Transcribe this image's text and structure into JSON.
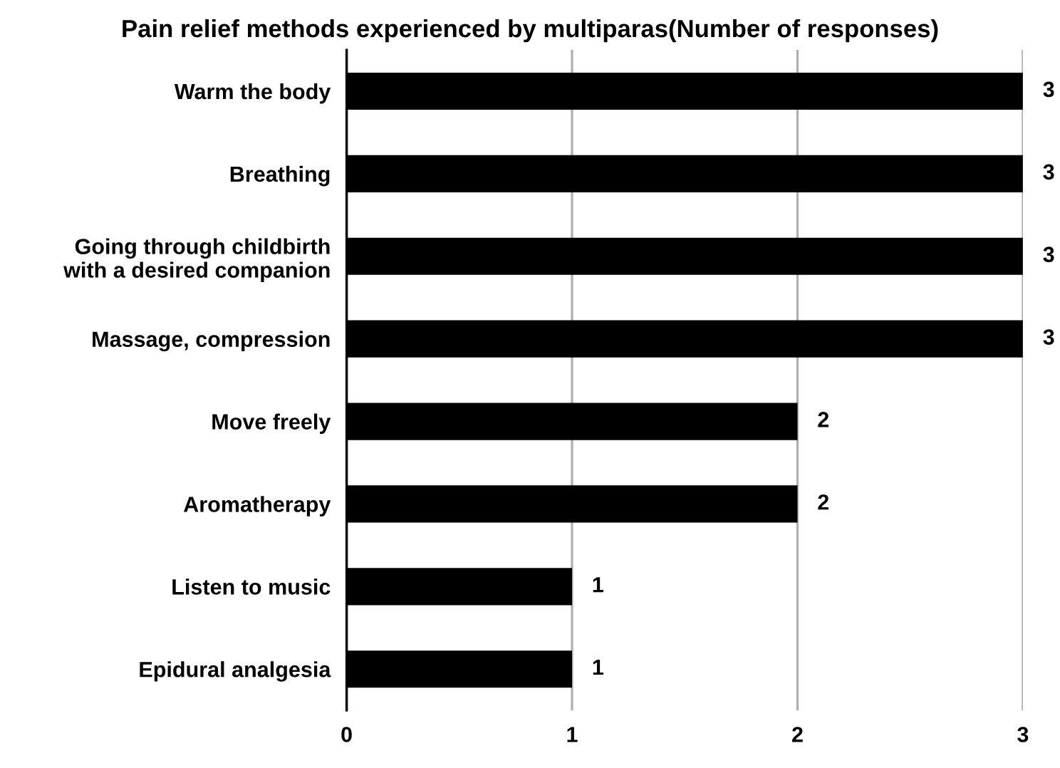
{
  "chart_data": {
    "type": "bar",
    "orientation": "horizontal",
    "title": "Pain relief methods experienced by multiparas(Number of responses)",
    "categories": [
      "Warm the body",
      "Breathing",
      "Going through childbirth\nwith a desired companion",
      "Massage, compression",
      "Move freely",
      "Aromatherapy",
      "Listen to music",
      "Epidural analgesia"
    ],
    "values": [
      3,
      3,
      3,
      3,
      2,
      2,
      1,
      1
    ],
    "color": "#000000",
    "xlim": [
      0,
      3
    ],
    "xticks": [
      0,
      1,
      2,
      3
    ],
    "grid": "x",
    "data_labels": true
  }
}
